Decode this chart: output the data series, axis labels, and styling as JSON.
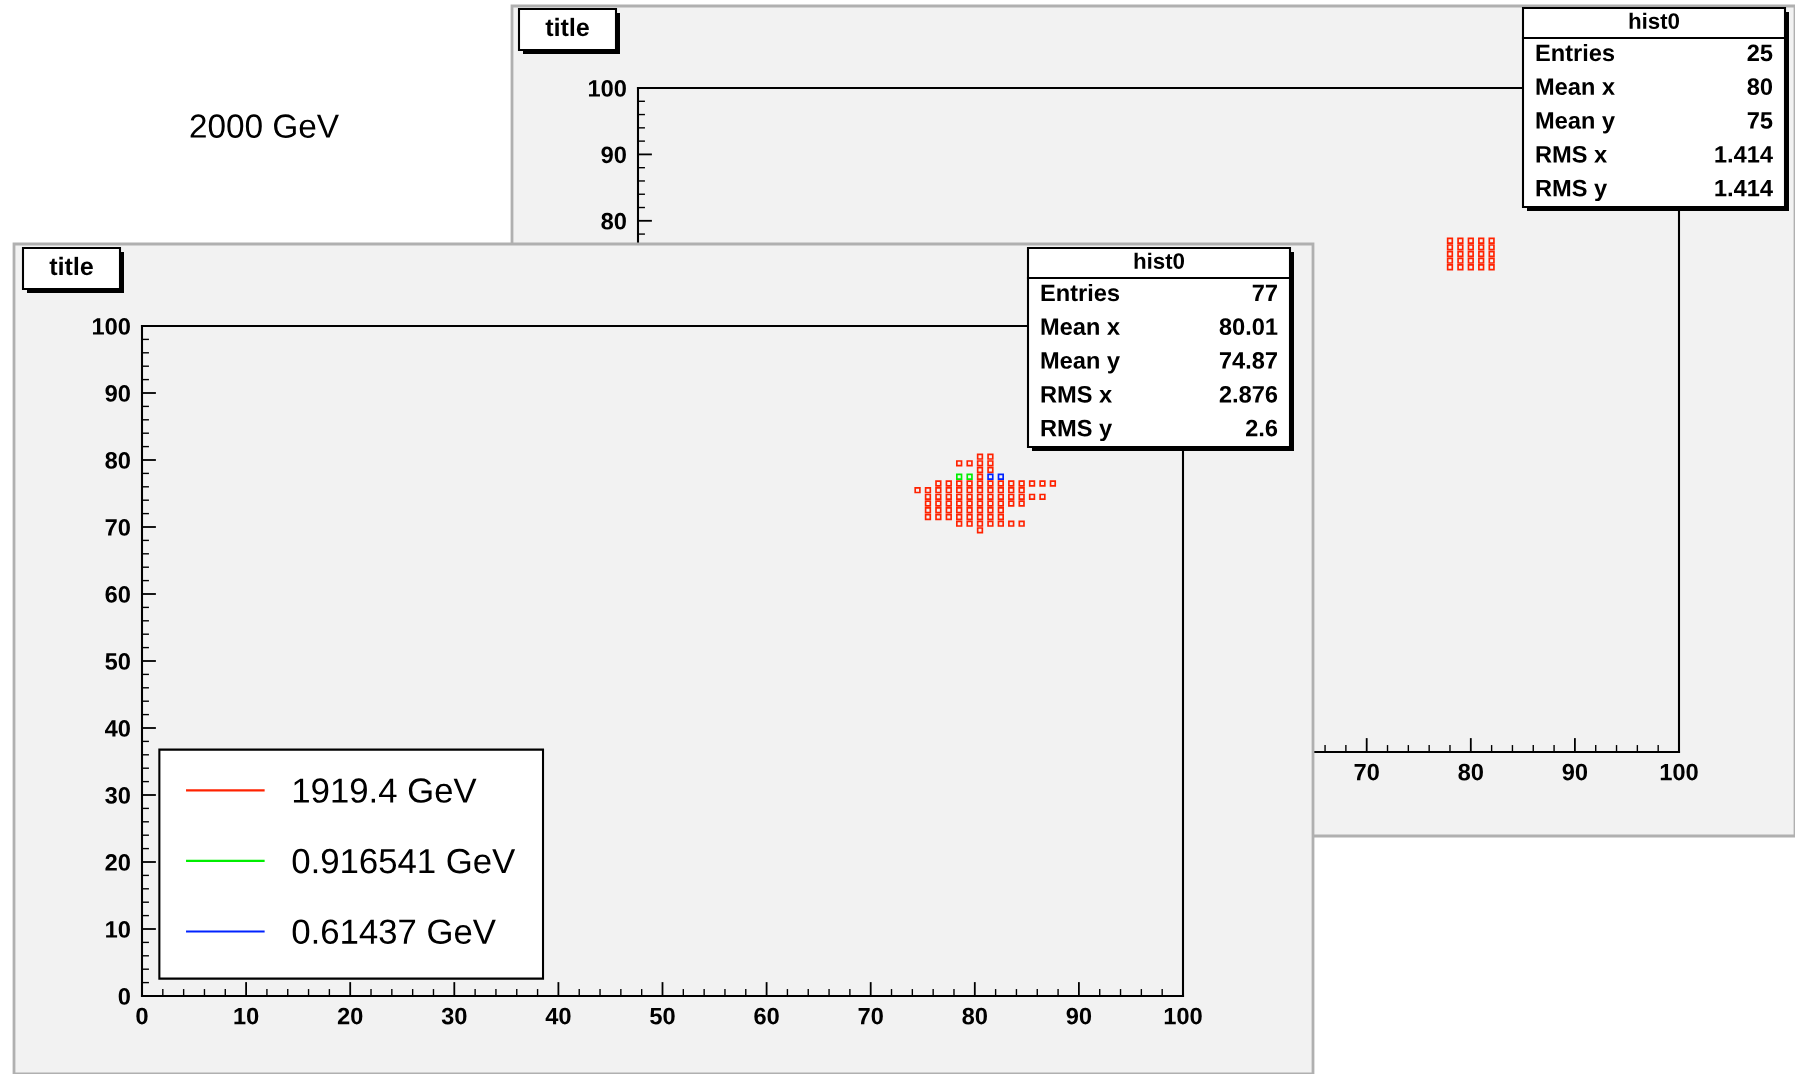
{
  "chart_data": [
    {
      "type": "scatter",
      "title": "title",
      "marker": "square",
      "legend": "bottom left",
      "xlim": [
        0,
        100
      ],
      "ylim": [
        0,
        100
      ],
      "xticks": [
        0,
        10,
        20,
        30,
        40,
        50,
        60,
        70,
        80,
        90,
        100
      ],
      "yticks": [
        0,
        10,
        20,
        30,
        40,
        50,
        60,
        70,
        80,
        90,
        100
      ],
      "annotations": [
        "hist0",
        "Entries 77",
        "Mean x 80.01",
        "Mean y 74.87",
        "RMS x 2.876",
        "RMS y 2.6"
      ],
      "series": [
        {
          "name": "1919.4 GeV",
          "color": "#ff2200",
          "x": [
            80.5,
            81.5,
            78.5,
            79.5,
            80.5,
            81.5,
            80.5,
            81.5,
            80.5,
            76.5,
            77.5,
            78.5,
            79.5,
            80.5,
            81.5,
            82.5,
            83.5,
            84.5,
            85.5,
            86.5,
            87.5,
            74.5,
            75.5,
            76.5,
            77.5,
            78.5,
            79.5,
            80.5,
            81.5,
            82.5,
            83.5,
            84.5,
            75.5,
            76.5,
            77.5,
            78.5,
            79.5,
            80.5,
            81.5,
            82.5,
            83.5,
            84.5,
            85.5,
            86.5,
            75.5,
            76.5,
            77.5,
            78.5,
            79.5,
            80.5,
            81.5,
            82.5,
            83.5,
            84.5,
            75.5,
            76.5,
            77.5,
            78.5,
            79.5,
            80.5,
            81.5,
            82.5,
            75.5,
            76.5,
            77.5,
            78.5,
            79.5,
            80.5,
            81.5,
            82.5,
            78.5,
            79.5,
            80.5,
            81.5,
            82.5,
            83.5,
            84.5,
            80.5
          ],
          "values": [
            80.5,
            80.5,
            79.5,
            79.5,
            79.5,
            79.5,
            78.5,
            78.5,
            77.5,
            76.5,
            76.5,
            76.5,
            76.5,
            76.5,
            76.5,
            76.5,
            76.5,
            76.5,
            76.5,
            76.5,
            76.5,
            75.5,
            75.5,
            75.5,
            75.5,
            75.5,
            75.5,
            75.5,
            75.5,
            75.5,
            75.5,
            75.5,
            74.5,
            74.5,
            74.5,
            74.5,
            74.5,
            74.5,
            74.5,
            74.5,
            74.5,
            74.5,
            74.5,
            74.5,
            73.5,
            73.5,
            73.5,
            73.5,
            73.5,
            73.5,
            73.5,
            73.5,
            73.5,
            73.5,
            72.5,
            72.5,
            72.5,
            72.5,
            72.5,
            72.5,
            72.5,
            72.5,
            71.5,
            71.5,
            71.5,
            71.5,
            71.5,
            71.5,
            71.5,
            71.5,
            70.5,
            70.5,
            70.5,
            70.5,
            70.5,
            70.5,
            70.5,
            69.5
          ]
        },
        {
          "name": "0.916541 GeV",
          "color": "#00ee00",
          "x": [
            78.5,
            79.5
          ],
          "values": [
            77.5,
            77.5
          ]
        },
        {
          "name": "0.61437 GeV",
          "color": "#0022ff",
          "x": [
            81.5,
            82.5
          ],
          "values": [
            77.5,
            77.5
          ]
        }
      ]
    },
    {
      "type": "scatter",
      "title": "title",
      "marker": "square",
      "xlim": [
        0,
        100
      ],
      "ylim": [
        0,
        100
      ],
      "xticks": [
        70,
        80,
        90,
        100
      ],
      "yticks": [
        80,
        90,
        100
      ],
      "annotations": [
        "2000 GeV",
        "hist0",
        "Entries 25",
        "Mean x 80",
        "Mean y 75",
        "RMS x 1.414",
        "RMS y 1.414"
      ],
      "series": [
        {
          "color": "#ff2200",
          "x": [
            78,
            79,
            80,
            81,
            82,
            78,
            79,
            80,
            81,
            82,
            78,
            79,
            80,
            81,
            82,
            78,
            79,
            80,
            81,
            82,
            78,
            79,
            80,
            81,
            82
          ],
          "values": [
            77,
            77,
            77,
            77,
            77,
            76,
            76,
            76,
            76,
            76,
            75,
            75,
            75,
            75,
            75,
            74,
            74,
            74,
            74,
            74,
            73,
            73,
            73,
            73,
            73
          ]
        }
      ]
    }
  ]
}
